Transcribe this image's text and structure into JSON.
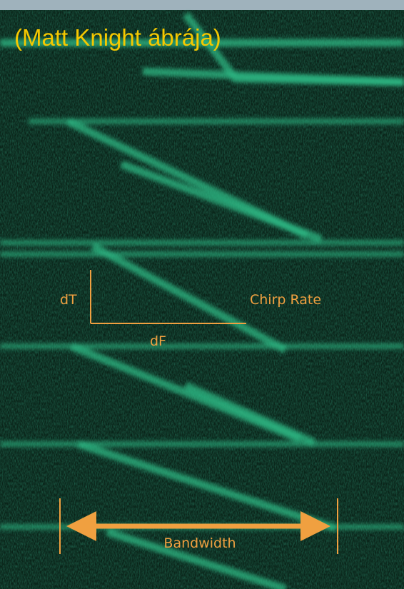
{
  "caption": "(Matt Knight ábrája)",
  "annotations": {
    "dt": "dT",
    "df": "dF",
    "chirp_rate": "Chirp Rate",
    "bandwidth": "Bandwidth"
  }
}
